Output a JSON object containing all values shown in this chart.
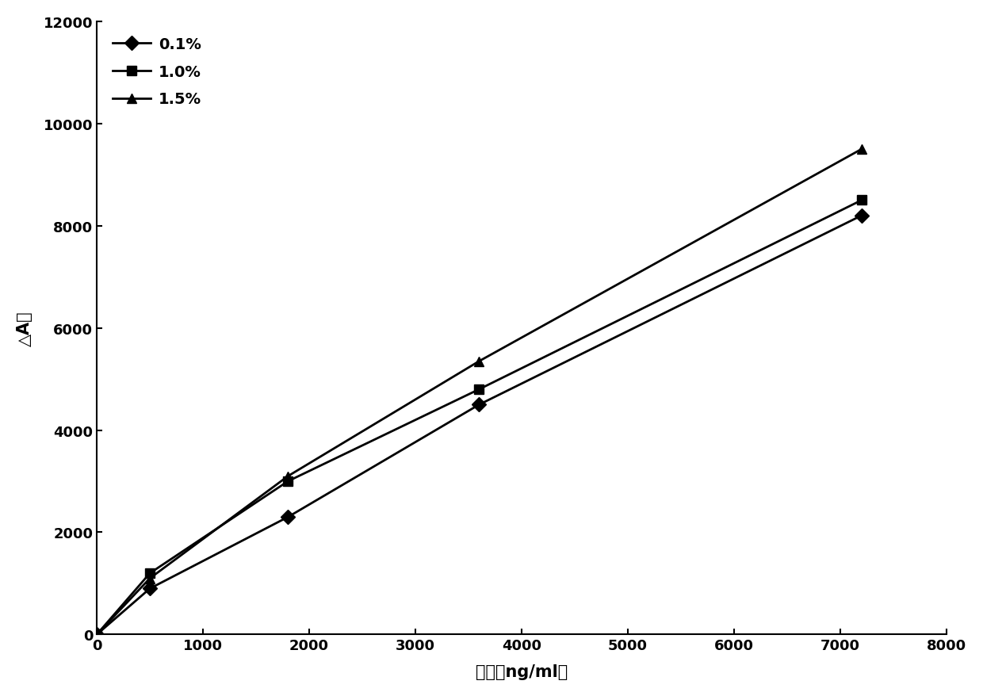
{
  "x": [
    0,
    500,
    1800,
    3600,
    7200
  ],
  "series": [
    {
      "label": "0.1%",
      "y": [
        0,
        900,
        2300,
        4500,
        8200
      ],
      "marker": "D",
      "color": "#000000",
      "linewidth": 2.0,
      "markersize": 9
    },
    {
      "label": "1.0%",
      "y": [
        0,
        1200,
        3000,
        4800,
        8500
      ],
      "marker": "s",
      "color": "#000000",
      "linewidth": 2.0,
      "markersize": 9
    },
    {
      "label": "1.5%",
      "y": [
        0,
        1100,
        3100,
        5350,
        9500
      ],
      "marker": "^",
      "color": "#000000",
      "linewidth": 2.0,
      "markersize": 9
    }
  ],
  "xlim": [
    0,
    8000
  ],
  "ylim": [
    0,
    12000
  ],
  "xticks": [
    0,
    1000,
    2000,
    3000,
    4000,
    5000,
    6000,
    7000,
    8000
  ],
  "yticks": [
    0,
    2000,
    4000,
    6000,
    8000,
    10000,
    12000
  ],
  "xlabel": "浓度（ng/ml）",
  "ylabel": "△A值",
  "background_color": "#ffffff",
  "legend_fontsize": 14,
  "axis_fontsize": 15,
  "tick_fontsize": 13
}
